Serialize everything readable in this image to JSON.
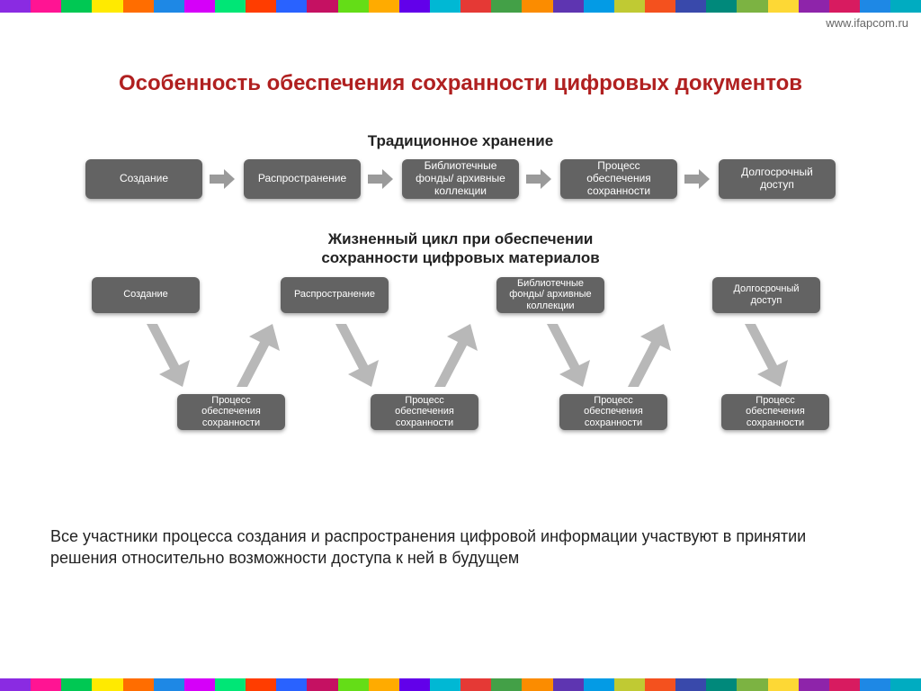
{
  "url": "www.ifapcom.ru",
  "title": "Особенность обеспечения сохранности цифровых документов",
  "stripe_colors": [
    "#8a2be2",
    "#ff1493",
    "#00c853",
    "#ffea00",
    "#ff6d00",
    "#1e88e5",
    "#d500f9",
    "#00e676",
    "#ff3d00",
    "#2962ff",
    "#c51162",
    "#64dd17",
    "#ffab00",
    "#6200ea",
    "#00b8d4",
    "#e53935",
    "#43a047",
    "#fb8c00",
    "#5e35b1",
    "#039be5",
    "#c0ca33",
    "#f4511e",
    "#3949ab",
    "#00897b",
    "#7cb342",
    "#fdd835",
    "#8e24aa",
    "#d81b60",
    "#1e88e5",
    "#00acc1"
  ],
  "section1_label": "Традиционное хранение",
  "section2_label_l1": "Жизненный цикл при обеспечении",
  "section2_label_l2": "сохранности цифровых материалов",
  "top_row": [
    "Создание",
    "Распространение",
    "Библиотечные фонды/ архивные коллекции",
    "Процесс обеспечения сохранности",
    "Долгосрочный доступ"
  ],
  "cycle_top": [
    "Создание",
    "Распространение",
    "Библиотечные фонды/ архивные коллекции",
    "Долгосрочный доступ"
  ],
  "cycle_bottom": [
    "Процесс обеспечения сохранности",
    "Процесс обеспечения сохранности",
    "Процесс обеспечения сохранности",
    "Процесс обеспечения сохранности"
  ],
  "body_text": "Все участники процесса создания и распространения цифровой информации участвуют в принятии решения относительно возможности доступа к ней в будущем",
  "node_bg": "#636363",
  "node_fg": "#ffffff",
  "arrow_color": "#9a9a9a",
  "diag_arrow_color": "#b8b8b8",
  "title_color": "#b02020",
  "cycle_top_x": [
    0,
    210,
    450,
    690
  ],
  "cycle_bottom_x": [
    95,
    310,
    520,
    700
  ],
  "diag_down_x": [
    55,
    265,
    500,
    720
  ],
  "diag_up_x": [
    155,
    375,
    590
  ]
}
